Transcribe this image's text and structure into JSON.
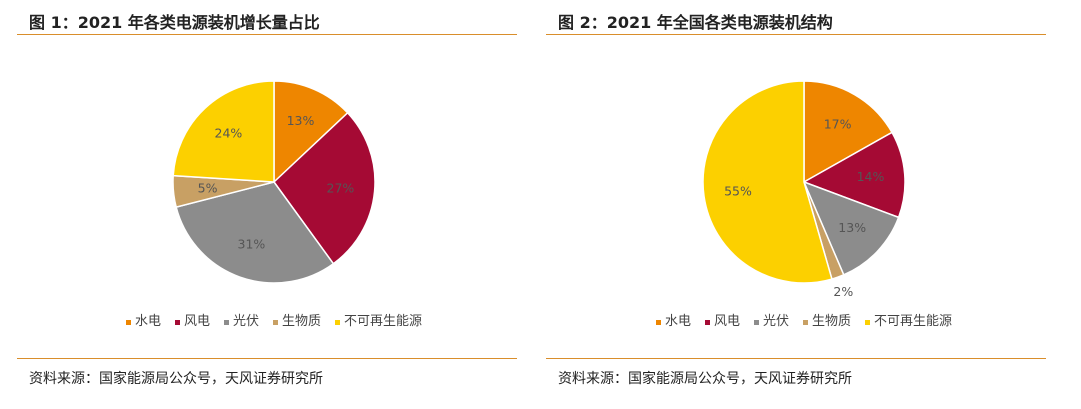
{
  "figures": [
    {
      "title": "图 1：2021 年各类电源装机增长量占比",
      "source": "资料来源：国家能源局公众号，天风证券研究所"
    },
    {
      "title": "图 2：2021 年全国各类电源装机结构",
      "source": "资料来源：国家能源局公众号，天风证券研究所"
    }
  ],
  "chart_data": [
    {
      "type": "pie",
      "categories": [
        "水电",
        "风电",
        "光伏",
        "生物质",
        "不可再生能源"
      ],
      "values": [
        13,
        27,
        31,
        5,
        24
      ],
      "labels": [
        "13%",
        "27%",
        "31%",
        "5%",
        "24%"
      ],
      "colors": [
        "#ee8600",
        "#a50a34",
        "#8c8c8c",
        "#c8a064",
        "#fcd000"
      ],
      "legend": "bottom"
    },
    {
      "type": "pie",
      "categories": [
        "水电",
        "风电",
        "光伏",
        "生物质",
        "不可再生能源"
      ],
      "values": [
        17,
        14,
        13,
        2,
        55
      ],
      "labels": [
        "17%",
        "14%",
        "13%",
        "2%",
        "55%"
      ],
      "colors": [
        "#ee8600",
        "#a50a34",
        "#8c8c8c",
        "#c8a064",
        "#fcd000"
      ],
      "legend": "bottom"
    }
  ]
}
